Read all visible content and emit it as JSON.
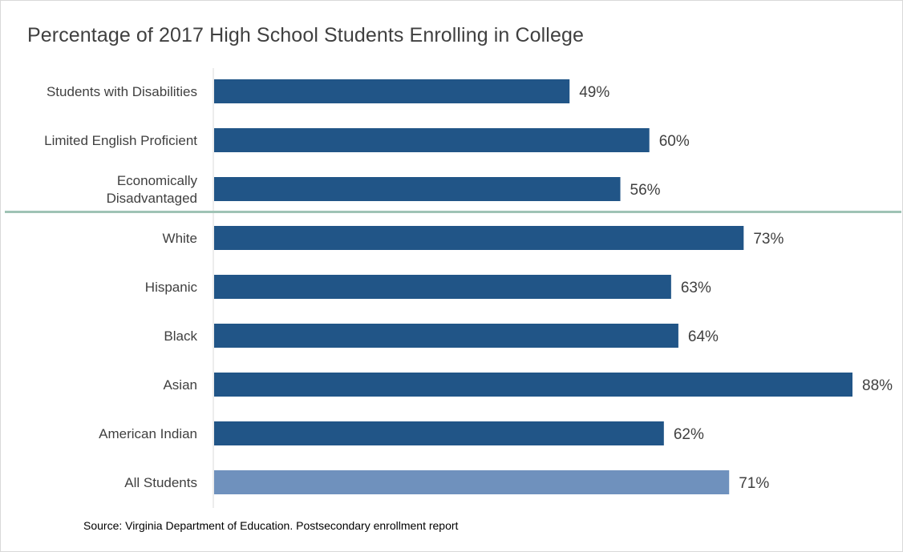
{
  "title": "Percentage of 2017 High School Students Enrolling in College",
  "source": "Source: Virginia Department of Education. Postsecondary enrollment report",
  "colors": {
    "bar": "#215587",
    "bar_highlight": "#6f91bd",
    "separator": "#9fc3b5",
    "axis": "#d9d9d9",
    "text": "#404040"
  },
  "chart_data": {
    "type": "bar",
    "orientation": "horizontal",
    "title": "Percentage of 2017 High School Students Enrolling in College",
    "categories": [
      [
        "Students with Disabilities"
      ],
      [
        "Limited English Proficient"
      ],
      [
        "Economically",
        "Disadvantaged"
      ],
      [
        "White"
      ],
      [
        "Hispanic"
      ],
      [
        "Black"
      ],
      [
        "Asian"
      ],
      [
        "American Indian"
      ],
      [
        "All Students"
      ]
    ],
    "values": [
      49,
      60,
      56,
      73,
      63,
      64,
      88,
      62,
      71
    ],
    "value_labels": [
      "49%",
      "60%",
      "56%",
      "73%",
      "63%",
      "64%",
      "88%",
      "62%",
      "71%"
    ],
    "highlight": [
      "All Students"
    ],
    "separator_after": "Economically Disadvantaged",
    "xlim": [
      0,
      88
    ],
    "grid": false,
    "legend": "none"
  }
}
